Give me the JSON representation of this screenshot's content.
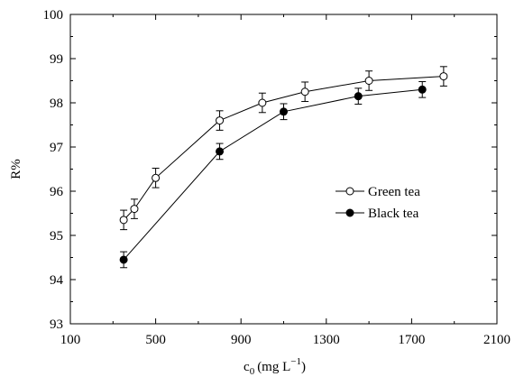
{
  "chart_data": {
    "type": "line",
    "title": "",
    "xlabel_main": "c",
    "xlabel_sub": "0",
    "xlabel_unit": "(mg L",
    "xlabel_sup": "−1",
    "xlabel_close": ")",
    "ylabel": "R%",
    "xlim": [
      100,
      2100
    ],
    "ylim": [
      93,
      100
    ],
    "xticks": [
      100,
      500,
      900,
      1300,
      1700,
      2100
    ],
    "yticks": [
      93,
      94,
      95,
      96,
      97,
      98,
      99,
      100
    ],
    "legend_position": "right-middle",
    "series": [
      {
        "name": "Green tea",
        "marker": "open-circle",
        "x": [
          350,
          400,
          500,
          800,
          1000,
          1200,
          1500,
          1850
        ],
        "y": [
          95.35,
          95.6,
          96.3,
          97.6,
          98.0,
          98.25,
          98.5,
          98.6
        ],
        "err": [
          0.22,
          0.22,
          0.22,
          0.22,
          0.22,
          0.22,
          0.22,
          0.22
        ]
      },
      {
        "name": "Black tea",
        "marker": "filled-circle",
        "x": [
          350,
          800,
          1100,
          1450,
          1750
        ],
        "y": [
          94.45,
          96.9,
          97.8,
          98.15,
          98.3
        ],
        "err": [
          0.18,
          0.18,
          0.18,
          0.18,
          0.18
        ]
      }
    ]
  }
}
